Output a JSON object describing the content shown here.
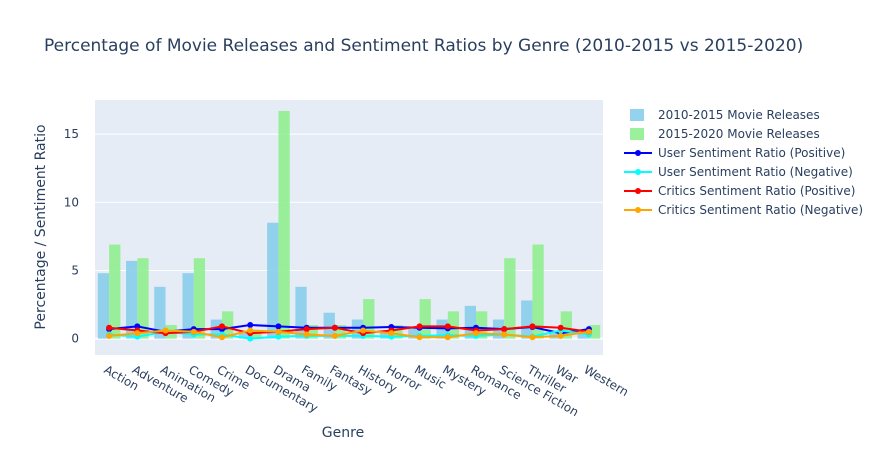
{
  "chart_data": {
    "type": "bar",
    "title": "Percentage of Movie Releases and Sentiment Ratios by Genre (2010-2015 vs 2015-2020)",
    "xlabel": "Genre",
    "ylabel": "Percentage / Sentiment Ratio",
    "ylim": [
      -1.2,
      17.5
    ],
    "yticks": [
      0,
      5,
      10,
      15
    ],
    "grid": true,
    "legend_position": "right",
    "categories": [
      "Action",
      "Adventure",
      "Animation",
      "Comedy",
      "Crime",
      "Documentary",
      "Drama",
      "Family",
      "Fantasy",
      "History",
      "Horror",
      "Music",
      "Mystery",
      "Romance",
      "Science Fiction",
      "Thriller",
      "War",
      "Western"
    ],
    "bar_series": [
      {
        "name": "2010-2015 Movie Releases",
        "color": "#87ceeb",
        "values": [
          4.8,
          5.7,
          3.8,
          4.8,
          1.4,
          0.5,
          8.5,
          3.8,
          1.9,
          1.4,
          0.5,
          0.9,
          1.4,
          2.4,
          1.4,
          2.8,
          0.5,
          0.5
        ]
      },
      {
        "name": "2015-2020 Movie Releases",
        "color": "#90ee90",
        "values": [
          6.9,
          5.9,
          1.0,
          5.9,
          2.0,
          0.5,
          16.7,
          1.0,
          1.0,
          2.9,
          1.0,
          2.9,
          2.0,
          2.0,
          5.9,
          6.9,
          2.0,
          1.0
        ]
      }
    ],
    "line_series": [
      {
        "name": "User Sentiment Ratio (Positive)",
        "color": "#0000ff",
        "values": [
          0.7,
          0.9,
          0.5,
          0.7,
          0.7,
          1.0,
          0.9,
          0.8,
          0.8,
          0.8,
          0.85,
          0.8,
          0.75,
          0.8,
          0.7,
          0.85,
          0.4,
          0.7
        ]
      },
      {
        "name": "User Sentiment Ratio (Negative)",
        "color": "#00ffff",
        "values": [
          0.3,
          0.15,
          0.5,
          0.3,
          0.3,
          0.0,
          0.15,
          0.2,
          0.2,
          0.2,
          0.15,
          0.2,
          0.25,
          0.2,
          0.3,
          0.15,
          0.6,
          0.3
        ]
      },
      {
        "name": "Critics Sentiment Ratio (Positive)",
        "color": "#ff0000",
        "values": [
          0.8,
          0.6,
          0.4,
          0.5,
          0.9,
          0.4,
          0.5,
          0.7,
          0.8,
          0.4,
          0.6,
          0.9,
          0.9,
          0.6,
          0.7,
          0.9,
          0.8,
          0.5
        ]
      },
      {
        "name": "Critics Sentiment Ratio (Negative)",
        "color": "#ffa500",
        "values": [
          0.2,
          0.4,
          0.6,
          0.5,
          0.1,
          0.6,
          0.5,
          0.3,
          0.2,
          0.6,
          0.4,
          0.1,
          0.1,
          0.4,
          0.3,
          0.1,
          0.2,
          0.5
        ]
      }
    ]
  }
}
